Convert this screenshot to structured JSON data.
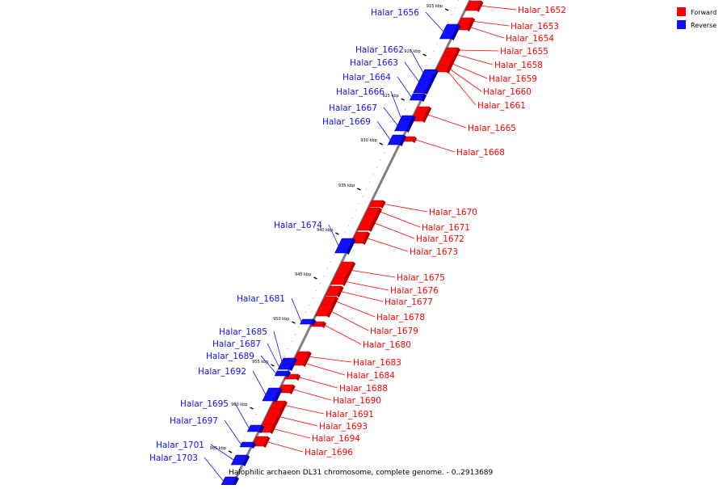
{
  "caption": "Halophilic archaeon DL31 chromosome, complete genome. - 0..2913689",
  "legend": [
    {
      "label": "Forward",
      "color": "#ff0000"
    },
    {
      "label": "Reverse",
      "color": "#1010ff"
    }
  ],
  "colors": {
    "forward": "#ff0000",
    "forward_dark": "#b80000",
    "reverse": "#1010ff",
    "reverse_dark": "#0000a8",
    "backbone": "#808080"
  },
  "ticks": [
    "915 kbp",
    "920 kbp",
    "925 kbp",
    "930 kbp",
    "935 kbp",
    "940 kbp",
    "945 kbp",
    "950 kbp",
    "955 kbp",
    "960 kbp",
    "965 kbp"
  ],
  "genes": [
    {
      "name": "Halar_1652",
      "strand": "forward"
    },
    {
      "name": "Halar_1653",
      "strand": "forward"
    },
    {
      "name": "Halar_1654",
      "strand": "forward"
    },
    {
      "name": "Halar_1655",
      "strand": "forward"
    },
    {
      "name": "Halar_1656",
      "strand": "reverse"
    },
    {
      "name": "Halar_1658",
      "strand": "forward"
    },
    {
      "name": "Halar_1659",
      "strand": "forward"
    },
    {
      "name": "Halar_1660",
      "strand": "forward"
    },
    {
      "name": "Halar_1661",
      "strand": "forward"
    },
    {
      "name": "Halar_1662",
      "strand": "reverse"
    },
    {
      "name": "Halar_1663",
      "strand": "reverse"
    },
    {
      "name": "Halar_1664",
      "strand": "reverse"
    },
    {
      "name": "Halar_1665",
      "strand": "forward"
    },
    {
      "name": "Halar_1666",
      "strand": "reverse"
    },
    {
      "name": "Halar_1667",
      "strand": "reverse"
    },
    {
      "name": "Halar_1668",
      "strand": "forward"
    },
    {
      "name": "Halar_1669",
      "strand": "reverse"
    },
    {
      "name": "Halar_1670",
      "strand": "forward"
    },
    {
      "name": "Halar_1671",
      "strand": "forward"
    },
    {
      "name": "Halar_1672",
      "strand": "forward"
    },
    {
      "name": "Halar_1673",
      "strand": "forward"
    },
    {
      "name": "Halar_1674",
      "strand": "reverse"
    },
    {
      "name": "Halar_1675",
      "strand": "forward"
    },
    {
      "name": "Halar_1676",
      "strand": "forward"
    },
    {
      "name": "Halar_1677",
      "strand": "forward"
    },
    {
      "name": "Halar_1678",
      "strand": "forward"
    },
    {
      "name": "Halar_1679",
      "strand": "forward"
    },
    {
      "name": "Halar_1680",
      "strand": "forward"
    },
    {
      "name": "Halar_1681",
      "strand": "reverse"
    },
    {
      "name": "Halar_1683",
      "strand": "forward"
    },
    {
      "name": "Halar_1684",
      "strand": "forward"
    },
    {
      "name": "Halar_1685",
      "strand": "reverse"
    },
    {
      "name": "Halar_1687",
      "strand": "reverse"
    },
    {
      "name": "Halar_1688",
      "strand": "forward"
    },
    {
      "name": "Halar_1689",
      "strand": "reverse"
    },
    {
      "name": "Halar_1690",
      "strand": "forward"
    },
    {
      "name": "Halar_1691",
      "strand": "forward"
    },
    {
      "name": "Halar_1692",
      "strand": "reverse"
    },
    {
      "name": "Halar_1693",
      "strand": "forward"
    },
    {
      "name": "Halar_1694",
      "strand": "forward"
    },
    {
      "name": "Halar_1695",
      "strand": "reverse"
    },
    {
      "name": "Halar_1696",
      "strand": "forward"
    },
    {
      "name": "Halar_1697",
      "strand": "reverse"
    },
    {
      "name": "Halar_1701",
      "strand": "reverse"
    },
    {
      "name": "Halar_1703",
      "strand": "reverse"
    }
  ]
}
